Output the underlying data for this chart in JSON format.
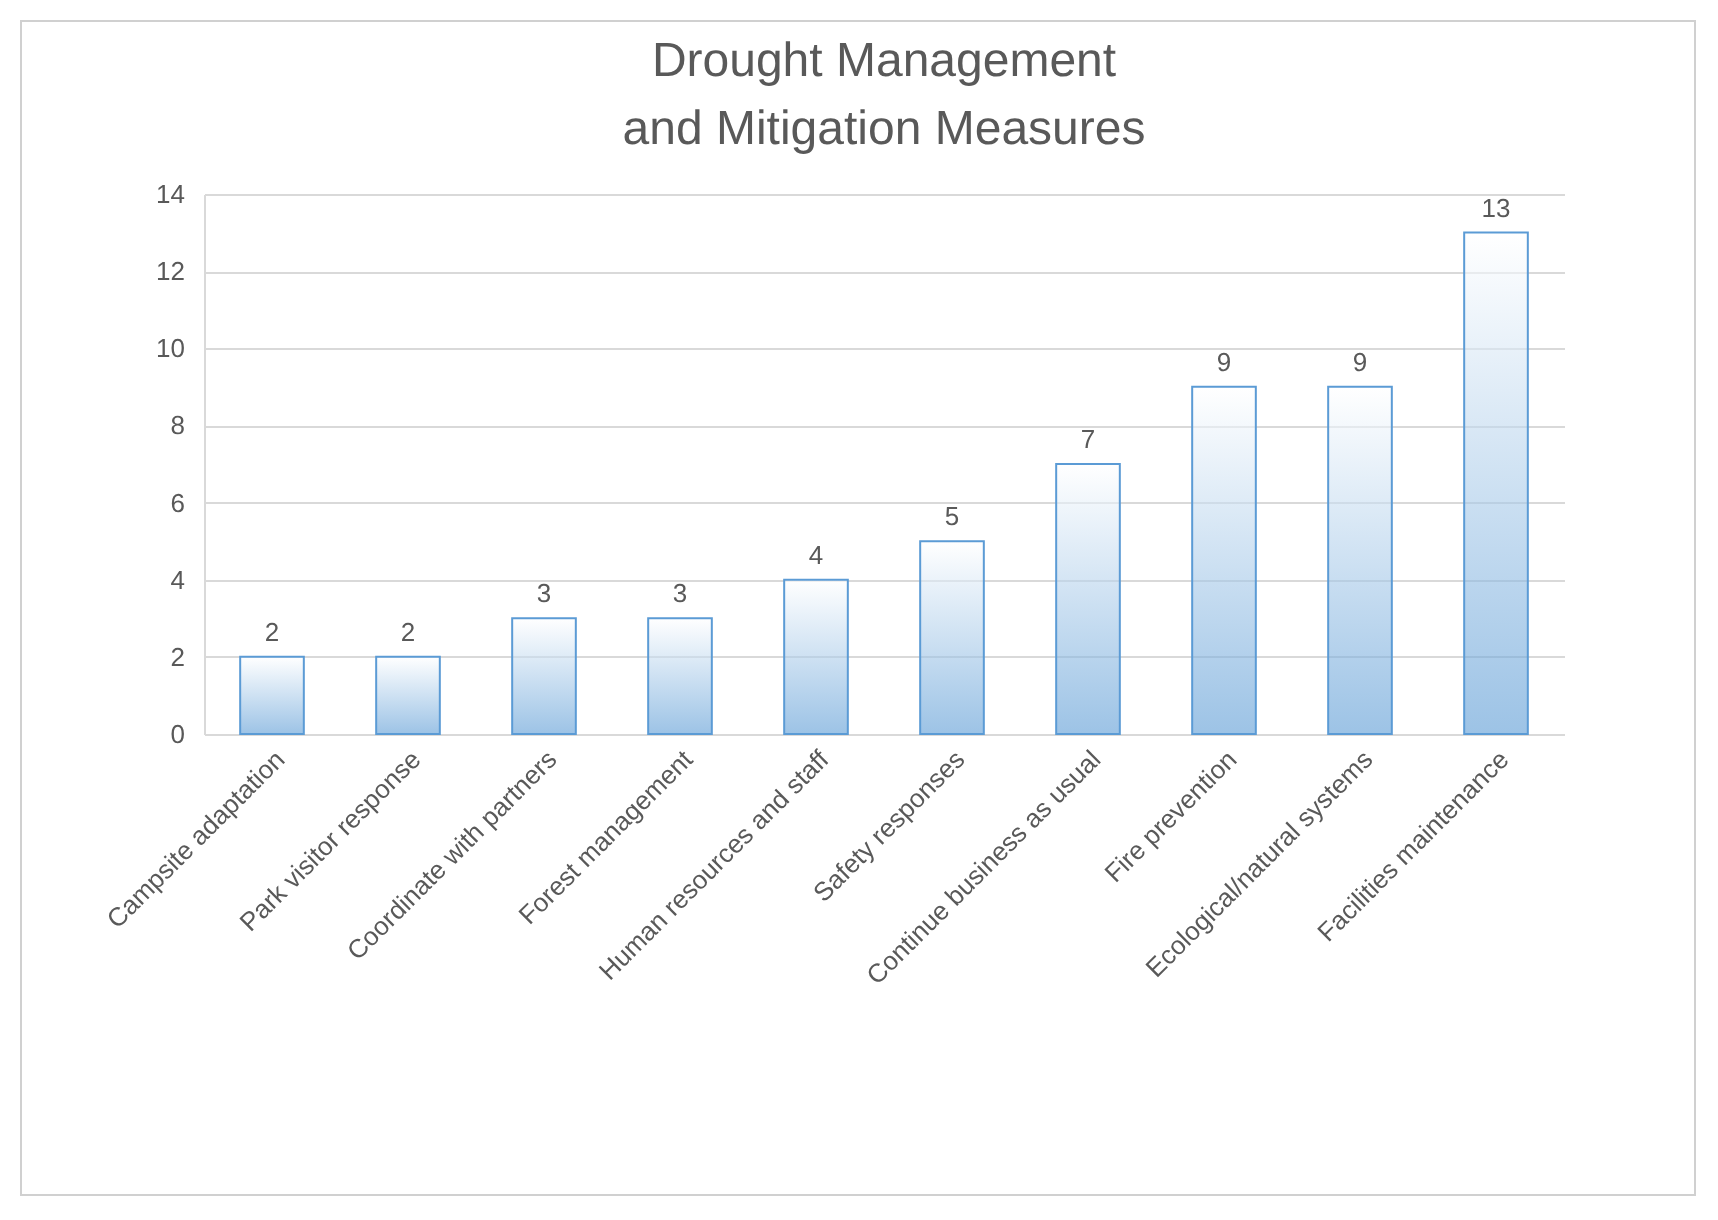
{
  "chart_data": {
    "type": "bar",
    "title": "Drought Management\nand Mitigation Measures",
    "categories": [
      "Campsite adaptation",
      "Park visitor response",
      "Coordinate with partners",
      "Forest management",
      "Human resources and staff",
      "Safety responses",
      "Continue business as usual",
      "Fire prevention",
      "Ecological/natural systems",
      "Facilities maintenance"
    ],
    "values": [
      2,
      2,
      3,
      3,
      4,
      5,
      7,
      9,
      9,
      13
    ],
    "color": "#5b9bd5",
    "ylim": [
      0,
      14
    ],
    "yticks": [
      0,
      2,
      4,
      6,
      8,
      10,
      12,
      14
    ],
    "grid": "y",
    "data_labels": true
  }
}
